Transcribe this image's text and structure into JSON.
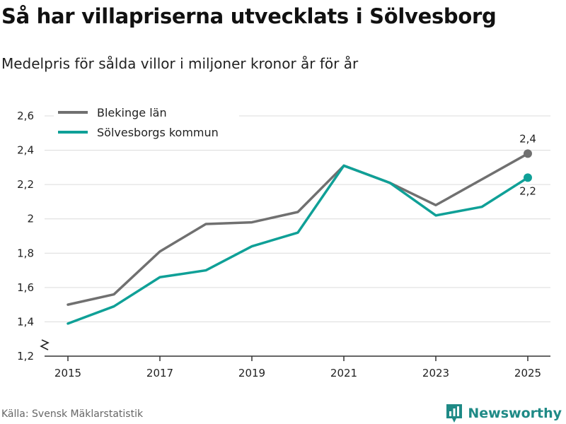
{
  "chart_data": {
    "type": "line",
    "title": "Så har villapriserna utvecklats i Sölvesborg",
    "subtitle": "Medelpris för sålda villor i miljoner kronor år för år",
    "xlabel": "",
    "ylabel": "",
    "x": [
      2015,
      2016,
      2017,
      2018,
      2019,
      2020,
      2021,
      2022,
      2023,
      2024,
      2025
    ],
    "x_ticks": [
      "2015",
      "2017",
      "2019",
      "2021",
      "2023",
      "2025"
    ],
    "x_tick_values": [
      2015,
      2017,
      2019,
      2021,
      2023,
      2025
    ],
    "y_ticks": [
      "1,2",
      "1,4",
      "1,6",
      "1,8",
      "2",
      "2,2",
      "2,4",
      "2,6"
    ],
    "y_tick_values": [
      1.2,
      1.4,
      1.6,
      1.8,
      2.0,
      2.2,
      2.4,
      2.6
    ],
    "xlim": [
      2015,
      2025
    ],
    "ylim": [
      1.2,
      2.6
    ],
    "grid": true,
    "axis_break": true,
    "legend_position": "top-left",
    "series": [
      {
        "name": "Blekinge län",
        "color": "#707070",
        "values": [
          1.5,
          1.56,
          1.81,
          1.97,
          1.98,
          2.04,
          2.31,
          2.21,
          2.08,
          2.23,
          2.38
        ],
        "end_label": "2,4"
      },
      {
        "name": "Sölvesborgs kommun",
        "color": "#0fa097",
        "values": [
          1.39,
          1.49,
          1.66,
          1.7,
          1.84,
          1.92,
          2.31,
          2.21,
          2.02,
          2.07,
          2.24
        ],
        "end_label": "2,2"
      }
    ]
  },
  "source": "Källa: Svensk Mäklarstatistik",
  "brand": {
    "name": "Newsworthy",
    "icon": "newsworthy-logo-icon",
    "color": "#1f8a86"
  }
}
